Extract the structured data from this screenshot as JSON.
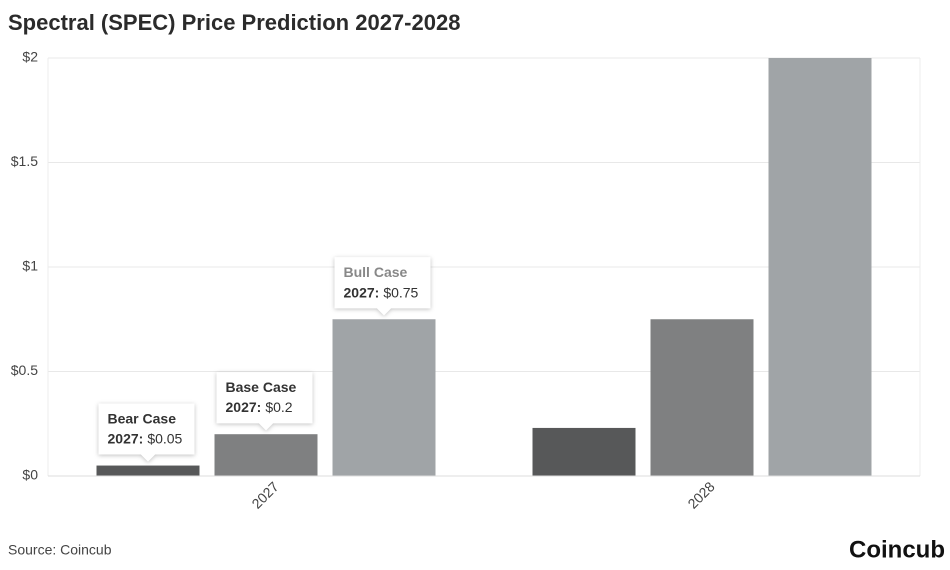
{
  "chart_data": {
    "type": "bar",
    "title": "Spectral (SPEC) Price Prediction 2027-2028",
    "categories": [
      "2027",
      "2028"
    ],
    "series": [
      {
        "name": "Bear Case",
        "color": "#575859",
        "values": [
          0.05,
          0.23
        ],
        "value_labels": [
          "$0.05",
          null
        ]
      },
      {
        "name": "Base Case",
        "color": "#7f8081",
        "values": [
          0.2,
          0.75
        ],
        "value_labels": [
          "$0.2",
          null
        ]
      },
      {
        "name": "Bull Case",
        "color": "#a0a4a7",
        "values": [
          0.75,
          2
        ],
        "value_labels": [
          "$0.75",
          null
        ]
      }
    ],
    "tooltip_category_label": "2027:",
    "ylim": [
      0,
      2
    ],
    "yticks": [
      {
        "value": 0,
        "label": "$0"
      },
      {
        "value": 0.5,
        "label": "$0.5"
      },
      {
        "value": 1,
        "label": "$1"
      },
      {
        "value": 1.5,
        "label": "$1.5"
      },
      {
        "value": 2,
        "label": "$2"
      }
    ],
    "grid": true,
    "source": "Source: Coincub",
    "brand": "Coincub"
  }
}
